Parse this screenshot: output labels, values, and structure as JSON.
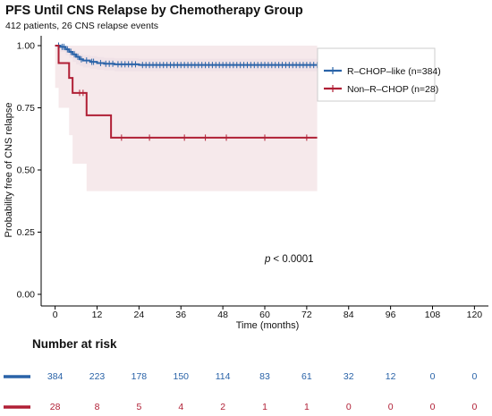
{
  "chart_data": {
    "type": "line",
    "title": "PFS Until CNS Relapse by Chemotherapy Group",
    "subtitle": "412 patients, 26 CNS relapse events",
    "xlabel": "Time (months)",
    "ylabel": "Probability free of CNS relapse",
    "xlim": [
      -4,
      124
    ],
    "ylim": [
      0,
      1.0
    ],
    "x_ticks": [
      "0",
      "12",
      "24",
      "36",
      "48",
      "60",
      "72",
      "84",
      "96",
      "108",
      "120"
    ],
    "y_ticks": [
      "0.00",
      "0.25",
      "0.50",
      "0.75",
      "1.00"
    ],
    "legend_position": "top-right",
    "annotation": "< 0.0001",
    "annotation_italic": "p",
    "series": [
      {
        "name": "R–CHOP–like (n=384)",
        "color": "#2a63a8",
        "band_color": "#ded8ea",
        "steps": [
          [
            0,
            1.0
          ],
          [
            1.5,
            0.995
          ],
          [
            3,
            0.985
          ],
          [
            4,
            0.975
          ],
          [
            5,
            0.965
          ],
          [
            6,
            0.955
          ],
          [
            7,
            0.945
          ],
          [
            8,
            0.94
          ],
          [
            10,
            0.935
          ],
          [
            12,
            0.93
          ],
          [
            14,
            0.927
          ],
          [
            17,
            0.925
          ],
          [
            24,
            0.922
          ],
          [
            75,
            0.922
          ]
        ],
        "lower": [
          [
            0,
            1.0
          ],
          [
            1.5,
            0.99
          ],
          [
            3,
            0.975
          ],
          [
            4,
            0.962
          ],
          [
            5,
            0.95
          ],
          [
            6,
            0.935
          ],
          [
            7,
            0.924
          ],
          [
            8,
            0.918
          ],
          [
            10,
            0.912
          ],
          [
            12,
            0.906
          ],
          [
            14,
            0.903
          ],
          [
            17,
            0.9
          ],
          [
            24,
            0.897
          ],
          [
            75,
            0.897
          ]
        ],
        "upper": [
          [
            0,
            1.0
          ],
          [
            1.5,
            1.0
          ],
          [
            3,
            0.995
          ],
          [
            4,
            0.99
          ],
          [
            5,
            0.982
          ],
          [
            6,
            0.973
          ],
          [
            7,
            0.966
          ],
          [
            8,
            0.962
          ],
          [
            10,
            0.958
          ],
          [
            12,
            0.954
          ],
          [
            14,
            0.951
          ],
          [
            17,
            0.949
          ],
          [
            24,
            0.947
          ],
          [
            75,
            0.947
          ]
        ],
        "censor_times": [
          1,
          2,
          2.5,
          3.5,
          4.5,
          5.5,
          6.5,
          7.5,
          9,
          10.5,
          11,
          13,
          14.5,
          15.5,
          16.5,
          18,
          19,
          20,
          21,
          22,
          23,
          25,
          26,
          27,
          28,
          29,
          30,
          31,
          32,
          33,
          34,
          35,
          36,
          37,
          38,
          39,
          40,
          41,
          42,
          43,
          44,
          45,
          46,
          47,
          48,
          49,
          50,
          51,
          52,
          53,
          54,
          55,
          56,
          57,
          58,
          59,
          60,
          61,
          62,
          63,
          64,
          65,
          66,
          67,
          68,
          69,
          70,
          71,
          72,
          73,
          74,
          75
        ]
      },
      {
        "name": "Non–R–CHOP (n=28)",
        "color": "#b01f35",
        "band_color": "#f3e1e4",
        "steps": [
          [
            0,
            1.0
          ],
          [
            1,
            0.93
          ],
          [
            4,
            0.87
          ],
          [
            5,
            0.81
          ],
          [
            9,
            0.72
          ],
          [
            16,
            0.63
          ],
          [
            75,
            0.63
          ]
        ],
        "lower": [
          [
            0,
            1.0
          ],
          [
            1,
            0.83
          ],
          [
            4,
            0.75
          ],
          [
            5,
            0.64
          ],
          [
            9,
            0.525
          ],
          [
            16,
            0.415
          ],
          [
            75,
            0.415
          ]
        ],
        "upper": [
          [
            0,
            1.0
          ],
          [
            75,
            1.0
          ]
        ],
        "censor_times": [
          7,
          8,
          19,
          27,
          37,
          43,
          49,
          60,
          72
        ]
      }
    ],
    "risk_table": {
      "title": "Number at risk",
      "times": [
        0,
        12,
        24,
        36,
        48,
        60,
        72,
        84,
        96,
        108,
        120
      ],
      "rows": [
        {
          "color": "#2a63a8",
          "values": [
            "384",
            "223",
            "178",
            "150",
            "114",
            "83",
            "61",
            "32",
            "12",
            "0",
            "0"
          ]
        },
        {
          "color": "#b01f35",
          "values": [
            "28",
            "8",
            "5",
            "4",
            "2",
            "1",
            "1",
            "0",
            "0",
            "0",
            "0"
          ]
        }
      ]
    }
  }
}
